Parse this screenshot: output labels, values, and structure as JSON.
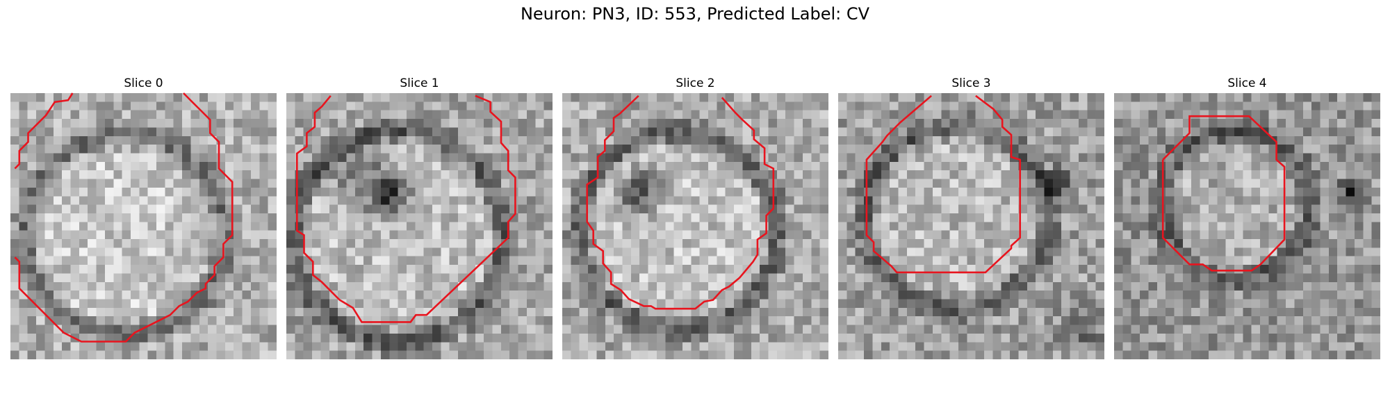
{
  "figure": {
    "title": "Neuron: PN3, ID: 553, Predicted Label: CV",
    "contour_color": "#e8141e",
    "panels": [
      {
        "title": "Slice 0"
      },
      {
        "title": "Slice 1"
      },
      {
        "title": "Slice 2"
      },
      {
        "title": "Slice 3"
      },
      {
        "title": "Slice 4"
      }
    ]
  }
}
